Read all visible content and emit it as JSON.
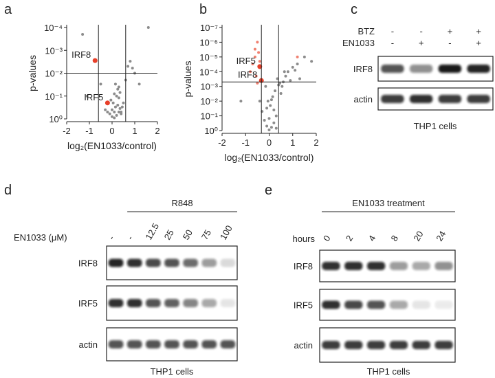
{
  "chart_data": [
    {
      "panel": "a",
      "type": "scatter",
      "x_label": "log₂(EN1033/control)",
      "y_label": "p-values",
      "xlim": [
        -2,
        2
      ],
      "xticks": [
        -2,
        -1,
        0,
        1,
        2
      ],
      "log_y": true,
      "ylim": [
        1,
        0.0001
      ],
      "yticks": [
        {
          "value": 1,
          "label": "10⁰"
        },
        {
          "value": 0.1,
          "label": "10⁻¹"
        },
        {
          "value": 0.01,
          "label": "10⁻²"
        },
        {
          "value": 0.001,
          "label": "10⁻³"
        },
        {
          "value": 0.0001,
          "label": "10⁻⁴"
        }
      ],
      "threshold_x": [
        -0.6,
        0.6
      ],
      "threshold_y": 0.01,
      "series": [
        {
          "color": "#8c8c8c",
          "x": [
            0.1,
            0.2,
            0.3,
            -0.1,
            0.0,
            0.15,
            0.25,
            0.35,
            0.05,
            -0.05,
            0.4,
            0.45,
            0.2,
            0.1,
            0.3,
            0.0,
            -0.2,
            0.5,
            0.25,
            0.15,
            0.35,
            0.1,
            -0.3,
            0.6,
            0.7,
            1.0,
            1.2,
            1.6,
            -1.3,
            -1.1,
            0.8,
            0.9,
            -0.5,
            0.3,
            0.4
          ],
          "y": [
            0.9,
            0.7,
            0.5,
            0.6,
            0.4,
            0.3,
            0.25,
            0.35,
            0.2,
            0.15,
            0.5,
            0.3,
            0.1,
            0.08,
            0.12,
            0.8,
            0.5,
            0.2,
            0.05,
            0.03,
            0.07,
            0.5,
            0.4,
            0.02,
            0.005,
            0.01,
            0.03,
            0.0001,
            0.0002,
            0.1,
            0.003,
            0.006,
            0.03,
            0.04,
            0.6
          ]
        },
        {
          "color": "#e8402a",
          "x": [
            -0.75,
            -0.2
          ],
          "y": [
            0.0028,
            0.2
          ],
          "point_labels": [
            "IRF8",
            "IRF5"
          ]
        }
      ]
    },
    {
      "panel": "b",
      "type": "scatter",
      "x_label": "log₂(EN1033/control)",
      "y_label": "p-values",
      "xlim": [
        -2,
        2
      ],
      "xticks": [
        -2,
        -1,
        0,
        1,
        2
      ],
      "log_y": true,
      "ylim": [
        1,
        1e-07
      ],
      "yticks": [
        {
          "value": 1,
          "label": "10⁰"
        },
        {
          "value": 0.1,
          "label": "10⁻¹"
        },
        {
          "value": 0.01,
          "label": "10⁻²"
        },
        {
          "value": 0.001,
          "label": "10⁻³"
        },
        {
          "value": 0.0001,
          "label": "10⁻⁴"
        },
        {
          "value": 1e-05,
          "label": "10⁻⁵"
        },
        {
          "value": 1e-06,
          "label": "10⁻⁶"
        },
        {
          "value": 1e-07,
          "label": "10⁻⁷"
        }
      ],
      "threshold_x": [
        -0.33,
        0.4
      ],
      "threshold_y": 0.0005,
      "series": [
        {
          "color": "#8c8c8c",
          "x": [
            0,
            0.1,
            -0.1,
            0.2,
            -0.2,
            0.3,
            -0.3,
            0.05,
            -0.05,
            0.15,
            0.25,
            -0.15,
            0.4,
            0.5,
            -0.4,
            0.6,
            0.7,
            0.8,
            1.0,
            1.2,
            1.5,
            1.8,
            0.3,
            0.2,
            0.1,
            -0.1,
            0.0,
            0.35,
            0.45,
            0.9,
            -1.2,
            0.55,
            1.1,
            0.65,
            1.3
          ],
          "y": [
            0.9,
            0.6,
            0.5,
            0.3,
            0.2,
            0.1,
            0.05,
            0.02,
            0.01,
            0.005,
            0.002,
            0.001,
            0.0008,
            0.003,
            0.01,
            0.0005,
            0.0002,
            0.0001,
            5e-05,
            3e-05,
            1e-05,
            2e-05,
            0.7,
            0.04,
            0.008,
            0.03,
            0.15,
            0.0003,
            0.0006,
            0.0004,
            0.01,
            0.001,
            8e-05,
            0.0001,
            0.0003
          ]
        },
        {
          "color": "#f08070",
          "x": [
            -0.5,
            -0.6,
            -0.45,
            -0.7,
            -0.55,
            -0.8,
            -0.4,
            -0.5,
            1.2,
            -0.6
          ],
          "y": [
            1e-06,
            1e-05,
            5e-06,
            3e-05,
            0.0002,
            0.0001,
            2e-05,
            0.0006,
            1e-05,
            3e-06
          ]
        },
        {
          "color": "#e8402a",
          "x": [
            -0.4,
            -0.33
          ],
          "y": [
            4.5e-05,
            0.0004
          ],
          "point_labels": [
            "IRF5",
            "IRF8"
          ]
        }
      ]
    }
  ],
  "blots": [
    {
      "panel": "c",
      "conditions": [
        {
          "label": "BTZ",
          "lanes": [
            "-",
            "-",
            "+",
            "+"
          ]
        },
        {
          "label": "EN1033",
          "lanes": [
            "-",
            "+",
            "-",
            "+"
          ]
        }
      ],
      "rows": [
        {
          "label": "IRF8",
          "intensity": [
            0.7,
            0.45,
            0.95,
            0.9
          ]
        },
        {
          "label": "actin",
          "intensity": [
            0.8,
            0.85,
            0.8,
            0.8
          ]
        }
      ],
      "caption": "THP1 cells"
    },
    {
      "panel": "d",
      "treatment": "R848",
      "conditions": [
        {
          "label": "EN1033 (μM)",
          "lanes": [
            "-",
            "-",
            "12.5",
            "25",
            "50",
            "75",
            "100"
          ]
        }
      ],
      "rows": [
        {
          "label": "IRF8",
          "intensity": [
            0.9,
            0.85,
            0.75,
            0.7,
            0.6,
            0.4,
            0.15
          ]
        },
        {
          "label": "IRF5",
          "intensity": [
            0.85,
            0.85,
            0.7,
            0.65,
            0.5,
            0.35,
            0.1
          ]
        },
        {
          "label": "actin",
          "intensity": [
            0.7,
            0.7,
            0.7,
            0.7,
            0.7,
            0.7,
            0.7
          ]
        }
      ],
      "caption": "THP1 cells"
    },
    {
      "panel": "e",
      "treatment": "EN1033 treatment",
      "conditions": [
        {
          "label": "hours",
          "lanes": [
            "0",
            "2",
            "4",
            "8",
            "20",
            "24"
          ]
        }
      ],
      "rows": [
        {
          "label": "IRF8",
          "intensity": [
            0.85,
            0.85,
            0.85,
            0.4,
            0.35,
            0.45
          ]
        },
        {
          "label": "IRF5",
          "intensity": [
            0.85,
            0.75,
            0.7,
            0.35,
            0.1,
            0.08
          ]
        },
        {
          "label": "actin",
          "intensity": [
            0.8,
            0.8,
            0.8,
            0.8,
            0.8,
            0.8
          ]
        }
      ],
      "caption": "THP1 cells"
    }
  ]
}
